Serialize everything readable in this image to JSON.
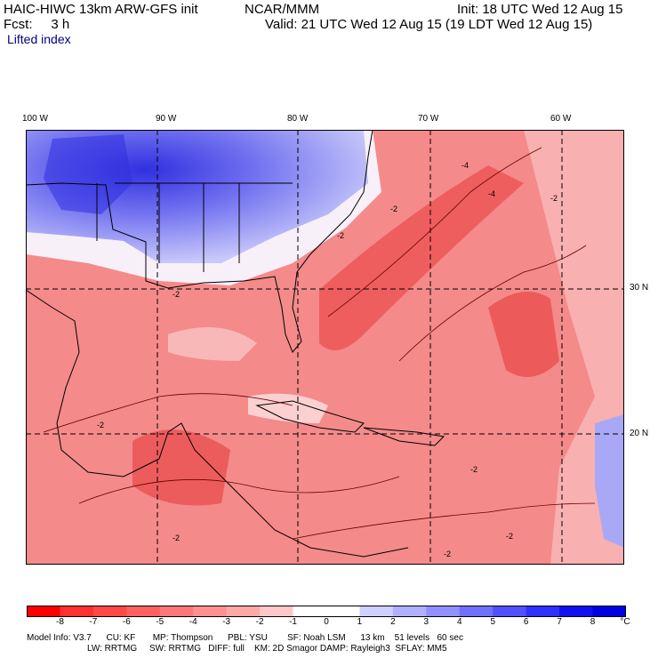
{
  "header": {
    "title": "HAIC-HIWC 13km ARW-GFS init",
    "center": "NCAR/MMM",
    "init": "Init: 18 UTC Wed 12 Aug 15",
    "fcst": "Fcst:     3 h",
    "valid": "Valid: 21 UTC Wed 12 Aug 15 (19 LDT Wed 12 Aug 15)",
    "field": "Lifted index"
  },
  "map": {
    "lon_labels": [
      "100 W",
      "90 W",
      "80 W",
      "70 W",
      "60 W"
    ],
    "lat_labels": [
      "30 N",
      "20 N"
    ],
    "contour_labels": [
      "-2",
      "-4"
    ],
    "colors": {
      "negative": "#f06060",
      "light_negative": "#f8aaaa",
      "positive": "#8080f0",
      "strong_positive": "#3838e0",
      "neutral": "#ffffff"
    }
  },
  "colorbar": {
    "labels": [
      "-8",
      "-7",
      "-6",
      "-5",
      "-4",
      "-3",
      "-2",
      "-1",
      "0",
      "1",
      "2",
      "3",
      "4",
      "5",
      "6",
      "7",
      "8"
    ],
    "unit": "°C",
    "colors": [
      "#ff0000",
      "#ff3030",
      "#ff4848",
      "#ff6060",
      "#ff7878",
      "#ff9090",
      "#ffa8a8",
      "#ffc8c8",
      "#ffffff",
      "#ffffff",
      "#d0d0ff",
      "#b0b0ff",
      "#9090ff",
      "#7070ff",
      "#5050ff",
      "#3030ff",
      "#1010f0",
      "#0000e0"
    ]
  },
  "model_info": {
    "line1": "Model Info: V3.7      CU: KF       MP: Thompson      PBL: YSU        SF: Noah LSM      13 km    51 levels   60 sec",
    "line2": "LW: RRTMG     SW: RRTMG   DIFF: full    KM: 2D Smagor DAMP: Rayleigh3  SFLAY: MM5"
  }
}
